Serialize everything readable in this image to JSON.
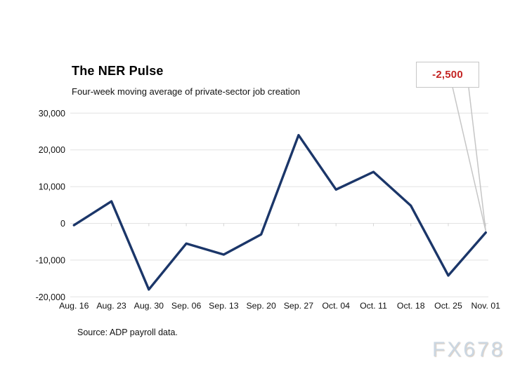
{
  "title": "The NER Pulse",
  "subtitle": "Four-week moving average of private-sector job creation",
  "source": "Source: ADP payroll data.",
  "watermark": "FX678",
  "callout": {
    "label": "-2,500"
  },
  "colors": {
    "line": "#1b3669",
    "grid": "#e2e2e2",
    "tick": "#d4d4d4",
    "callout_border": "#c6c6c6",
    "callout_text": "#c42524",
    "axis_text": "#111111",
    "watermark": "#cbd7e2"
  },
  "chart_data": {
    "type": "line",
    "title": "The NER Pulse",
    "subtitle": "Four-week moving average of private-sector job creation",
    "categories": [
      "Aug. 16",
      "Aug. 23",
      "Aug. 30",
      "Sep. 06",
      "Sep. 13",
      "Sep. 20",
      "Sep. 27",
      "Oct. 04",
      "Oct. 11",
      "Oct. 18",
      "Oct. 25",
      "Nov. 01"
    ],
    "values": [
      -500,
      6000,
      -18000,
      -5500,
      -8500,
      -3000,
      24000,
      9200,
      14000,
      4800,
      -14200,
      -2500
    ],
    "xlabel": "",
    "ylabel": "",
    "ylim": [
      -20000,
      30000
    ],
    "yticks": [
      {
        "value": 30000,
        "label": "30,000"
      },
      {
        "value": 20000,
        "label": "20,000"
      },
      {
        "value": 10000,
        "label": "10,000"
      },
      {
        "value": 0,
        "label": "0"
      },
      {
        "value": -10000,
        "label": "-10,000"
      },
      {
        "value": -20000,
        "label": "-20,000"
      }
    ],
    "grid": true,
    "legend": "none",
    "annotation": {
      "label": "-2,500",
      "series_index": 11
    }
  }
}
